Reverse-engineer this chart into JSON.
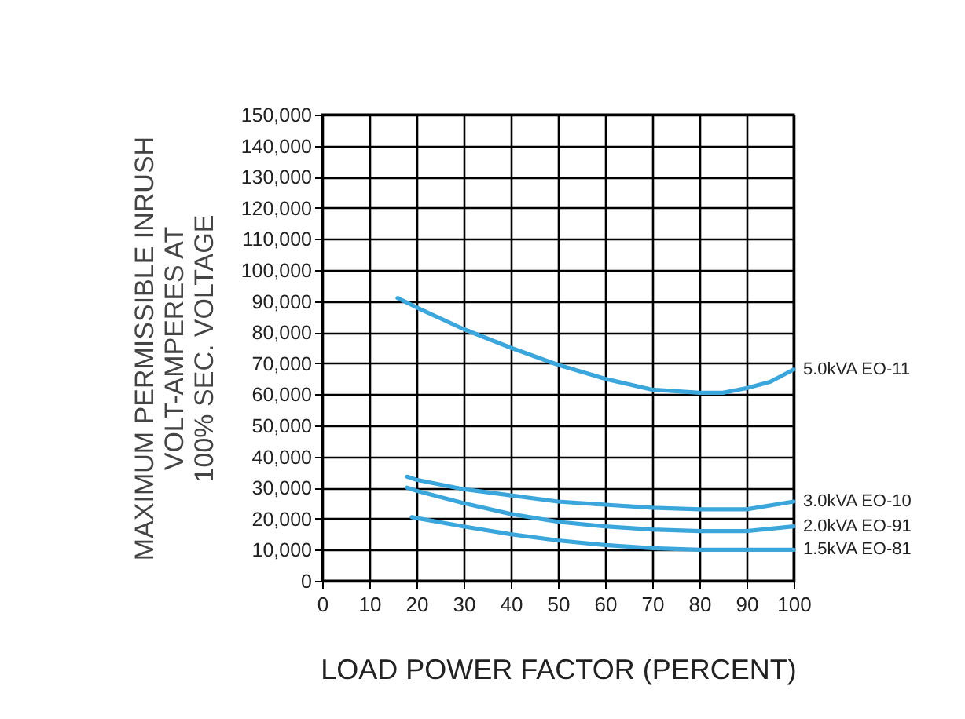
{
  "chart_data": {
    "type": "line",
    "xlabel": "LOAD POWER FACTOR (PERCENT)",
    "ylabel": "MAXIMUM PERMISSIBLE INRUSH\nVOLT-AMPERES AT\n100% SEC. VOLTAGE",
    "xlim": [
      0,
      100
    ],
    "xticks": [
      0,
      10,
      20,
      30,
      40,
      50,
      60,
      70,
      80,
      90,
      100
    ],
    "ylim": [
      0,
      150000
    ],
    "yticks": [
      0,
      {
        "value": 10000,
        "label": "10,000"
      },
      {
        "value": 20000,
        "label": "20,000"
      },
      {
        "value": 30000,
        "label": "30,000"
      },
      {
        "value": 40000,
        "label": "40,000"
      },
      {
        "value": 50000,
        "label": "50,000"
      },
      {
        "value": 60000,
        "label": "60,000"
      },
      {
        "value": 70000,
        "label": "70,000"
      },
      {
        "value": 80000,
        "label": "80,000"
      },
      {
        "value": 90000,
        "label": "90,000"
      },
      {
        "value": 100000,
        "label": "100,000"
      },
      {
        "value": 110000,
        "label": "110,000"
      },
      {
        "value": 120000,
        "label": "120,000"
      },
      {
        "value": 130000,
        "label": "130,000"
      },
      {
        "value": 140000,
        "label": "140,000"
      },
      {
        "value": 150000,
        "label": "150,000"
      }
    ],
    "grid": true,
    "legend": false,
    "marker": "none",
    "line_style": "solid",
    "series": [
      {
        "name": "5.0kVA EO-11",
        "color": "#3ba6dc",
        "x": [
          16,
          20,
          30,
          40,
          50,
          60,
          70,
          80,
          85,
          90,
          95,
          100
        ],
        "values": [
          91000,
          88000,
          81000,
          75000,
          69500,
          65000,
          61500,
          60500,
          60500,
          62000,
          64000,
          68000
        ]
      },
      {
        "name": "3.0kVA EO-10",
        "color": "#3ba6dc",
        "x": [
          18,
          20,
          30,
          40,
          50,
          60,
          70,
          80,
          90,
          100
        ],
        "values": [
          33500,
          32500,
          29500,
          27500,
          25500,
          24500,
          23500,
          23000,
          23000,
          25500
        ]
      },
      {
        "name": "2.0kVA EO-91",
        "color": "#3ba6dc",
        "x": [
          18,
          20,
          30,
          40,
          50,
          60,
          70,
          80,
          90,
          100
        ],
        "values": [
          30000,
          29000,
          25000,
          21500,
          19000,
          17500,
          16500,
          16000,
          16000,
          17500
        ]
      },
      {
        "name": "1.5kVA EO-81",
        "color": "#3ba6dc",
        "x": [
          19,
          30,
          40,
          50,
          60,
          70,
          80,
          90,
          100
        ],
        "values": [
          20500,
          17500,
          15000,
          13000,
          11500,
          10500,
          10000,
          10000,
          10000
        ]
      }
    ]
  }
}
